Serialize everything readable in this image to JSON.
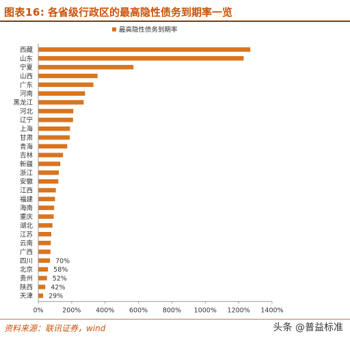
{
  "figure": {
    "label": "图表16:",
    "title": "各省级行政区的最高隐性债务到期率一览",
    "source": "资料来源：联讯证券，wind",
    "watermark": "头条 @普益标准"
  },
  "colors": {
    "bar": "#d9741f",
    "title": "#c8520a",
    "axis": "#333333"
  },
  "chart_data": {
    "type": "bar",
    "orientation": "horizontal",
    "title": "",
    "xlabel": "",
    "ylabel": "",
    "legend": {
      "position": "top",
      "entries": [
        "最高隐性债务到期率"
      ]
    },
    "xlim": [
      0,
      1400
    ],
    "xticks": [
      0,
      200,
      400,
      600,
      800,
      1000,
      1200,
      1400
    ],
    "xtick_labels": [
      "0%",
      "200%",
      "400%",
      "600%",
      "800%",
      "1000%",
      "1200%",
      "1400%"
    ],
    "grid": false,
    "series": [
      {
        "name": "最高隐性债务到期率"
      }
    ],
    "categories": [
      "西藏",
      "山东",
      "宁夏",
      "山西",
      "广东",
      "河南",
      "黑龙江",
      "河北",
      "辽宁",
      "上海",
      "甘肃",
      "青海",
      "吉林",
      "新疆",
      "浙江",
      "安徽",
      "江西",
      "福建",
      "海南",
      "重庆",
      "湖北",
      "江苏",
      "云南",
      "广西",
      "四川",
      "北京",
      "贵州",
      "陕西",
      "天津"
    ],
    "values": [
      1270,
      1230,
      570,
      355,
      330,
      280,
      272,
      210,
      208,
      190,
      188,
      173,
      148,
      132,
      123,
      120,
      105,
      100,
      95,
      92,
      85,
      78,
      75,
      73,
      70,
      58,
      52,
      42,
      29
    ],
    "data_labels": {
      "四川": "70%",
      "北京": "58%",
      "贵州": "52%",
      "陕西": "42%",
      "天津": "29%"
    }
  }
}
